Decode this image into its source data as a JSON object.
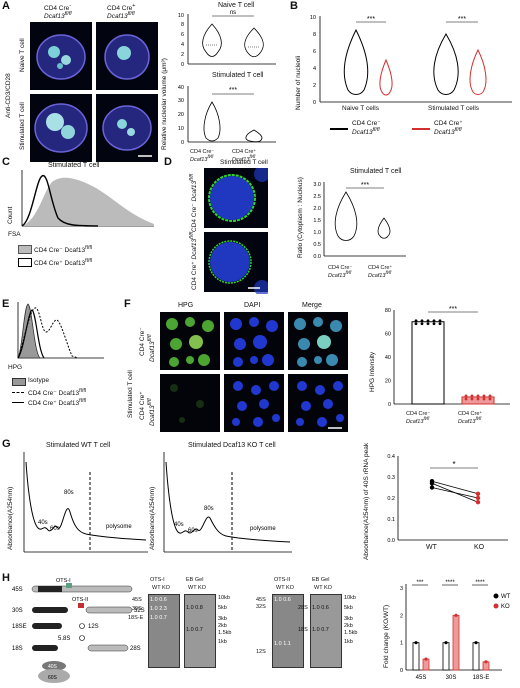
{
  "panels": {
    "A": {
      "letter": "A",
      "col1": "CD4 Cre",
      "col1_sup": "-",
      "col1_geno": "Dcaf13",
      "geno_sup": "fl/fl",
      "col2": "CD4 Cre",
      "col2_sup": "+",
      "row_group": "Anti-CD3/CD28",
      "row1": "Naive T cell",
      "row2": "Stimulated T cell",
      "chart1_title": "Naive T cell",
      "chart1_sig": "ns",
      "chart2_title": "Stimulated T cell",
      "chart2_sig": "***",
      "ylabel": "Relative nucleolar volume (μm³)",
      "xcat1": "CD4 Cre⁻",
      "xcat2": "CD4 Cre⁺",
      "xcat_geno": "Dcaf13"
    },
    "B": {
      "letter": "B",
      "ylabel": "Number of nucleoli",
      "sig": "***",
      "xcat1": "Naive T cells",
      "xcat2": "Stimulated T cells",
      "legend1": "CD4 Cre⁻",
      "legend2": "CD4 Cre⁺",
      "legend_geno": "Dcaf13"
    },
    "C": {
      "letter": "C",
      "title": "Stimulated T cell",
      "ylabel": "Count",
      "xlabel": "FSA",
      "legend1": "CD4 Cre⁻ Dcaf13",
      "legend2": "CD4 Cre⁺ Dcaf13"
    },
    "D": {
      "letter": "D",
      "img_title": "Stimulated T cell",
      "row1": "CD4 Cre⁻",
      "row2": "CD4 Cre⁺",
      "row_geno": "Dcaf13",
      "chart_title": "Stimulated T cell",
      "ylabel": "Ratio (Cytoplasm : Nucleus)",
      "sig": "***",
      "xcat1": "CD4 Cre⁻",
      "xcat2": "CD4 Cre⁺",
      "xcat_geno": "Dcaf13"
    },
    "E": {
      "letter": "E",
      "xlabel": "HPG",
      "legend1": "Isotype",
      "legend2": "CD4 Cre⁻ Dcaf13",
      "legend3": "CD4 Cre⁺ Dcaf13"
    },
    "F": {
      "letter": "F",
      "col1": "HPG",
      "col2": "DAPI",
      "col3": "Merge",
      "row_group": "Stimulated T cell",
      "row1": "CD4 Cre⁻",
      "row2": "CD4 Cre⁺",
      "row_geno": "Dcaf13",
      "ylabel": "HPG Intensity",
      "sig": "***",
      "xcat1": "CD4 Cre⁻",
      "xcat2": "CD4 Cre⁺",
      "xcat_geno": "Dcaf13"
    },
    "G": {
      "letter": "G",
      "title1": "Stimulated WT T cell",
      "title2": "Stimulated Dcaf13 KO T cell",
      "ylabel": "Absorbance(A254nm)",
      "peak1": "40s",
      "peak2": "60s",
      "peak3": "80s",
      "polysome": "polysome",
      "right_ylabel": "Absorbance(A254nm) of 40S rRNA peak",
      "sig": "*",
      "x1": "WT",
      "x2": "KO"
    },
    "H": {
      "letter": "H",
      "probes": [
        "OTS-I",
        "OTS-II"
      ],
      "precursors": [
        "45S",
        "30S",
        "32S",
        "18SE",
        "12S",
        "5.8S",
        "18S",
        "28S",
        "40S",
        "60S"
      ],
      "blot1_title": "OTS-I",
      "blot2_title": "EB Gel",
      "blot3_title": "OTS-II",
      "blot4_title": "EB Gel",
      "wt": "WT",
      "ko": "KO",
      "blot1_bands": [
        "45S",
        "30S",
        "18S-E"
      ],
      "blot1_vals_wt": [
        "1.0",
        "1.0",
        "1.0"
      ],
      "blot1_vals_ko": [
        "0.6",
        "2.3",
        "0.7"
      ],
      "blot2_sizes": [
        "10kb",
        "5kb",
        "3kb",
        "2kb",
        "1.5kb",
        "1kb"
      ],
      "blot2_bands": [
        "28S",
        "18S"
      ],
      "blot2_vals_wt": [
        "1.0",
        "1.0"
      ],
      "blot2_vals_ko": [
        "0.8",
        "0.7"
      ],
      "blot3_bands": [
        "45S",
        "32S",
        "12S"
      ],
      "blot3_vals_wt": [
        "1.0",
        "1.0"
      ],
      "blot3_vals_ko": [
        "0.6",
        "1.1"
      ],
      "blot4_bands": [
        "28S",
        "18S"
      ],
      "blot4_vals_wt": [
        "1.0",
        "1.0"
      ],
      "blot4_vals_ko": [
        "0.6",
        "0.7"
      ],
      "bar_ylabel": "Fold change (KO/WT)",
      "bar_sig": [
        "***",
        "****",
        "****"
      ],
      "legend_wt": "WT",
      "legend_ko": "KO"
    }
  },
  "chart_data": [
    {
      "type": "bar",
      "panel": "F",
      "categories": [
        "CD4 Cre⁻ Dcaf13fl/fl",
        "CD4 Cre⁺ Dcaf13fl/fl"
      ],
      "values": [
        70,
        6
      ],
      "ylabel": "HPG Intensity",
      "ylim": [
        0,
        80
      ],
      "yticks": [
        0,
        20,
        40,
        60,
        80
      ]
    },
    {
      "type": "bar",
      "panel": "H",
      "categories": [
        "45S",
        "30S",
        "18S-E"
      ],
      "series": [
        {
          "name": "WT",
          "values": [
            1.0,
            1.0,
            1.0
          ]
        },
        {
          "name": "KO",
          "values": [
            0.4,
            2.0,
            0.3
          ]
        }
      ],
      "ylabel": "Fold change (KO/WT)",
      "ylim": [
        0,
        3
      ],
      "yticks": [
        0,
        1,
        2,
        3
      ]
    },
    {
      "type": "line",
      "panel": "G",
      "x": [
        "WT",
        "KO"
      ],
      "series": [
        {
          "values": [
            0.28,
            0.22
          ]
        },
        {
          "values": [
            0.27,
            0.18
          ]
        },
        {
          "values": [
            0.25,
            0.2
          ]
        }
      ],
      "ylim": [
        0.0,
        0.4
      ],
      "yticks": [
        0.0,
        0.1,
        0.2,
        0.3,
        0.4
      ]
    },
    {
      "type": "scatter",
      "panel": "B",
      "categories": [
        "Naive T cells",
        "Stimulated T cells"
      ],
      "yticks": [
        0,
        2,
        4,
        6,
        8,
        10
      ]
    },
    {
      "type": "scatter",
      "panel": "A",
      "yticks_naive": [
        0,
        2,
        4,
        6,
        8,
        10
      ],
      "yticks_stim": [
        0,
        10,
        20,
        30,
        40
      ]
    },
    {
      "type": "scatter",
      "panel": "D",
      "yticks": [
        0.0,
        0.5,
        1.0,
        1.5,
        2.0,
        2.5,
        3.0
      ]
    }
  ]
}
